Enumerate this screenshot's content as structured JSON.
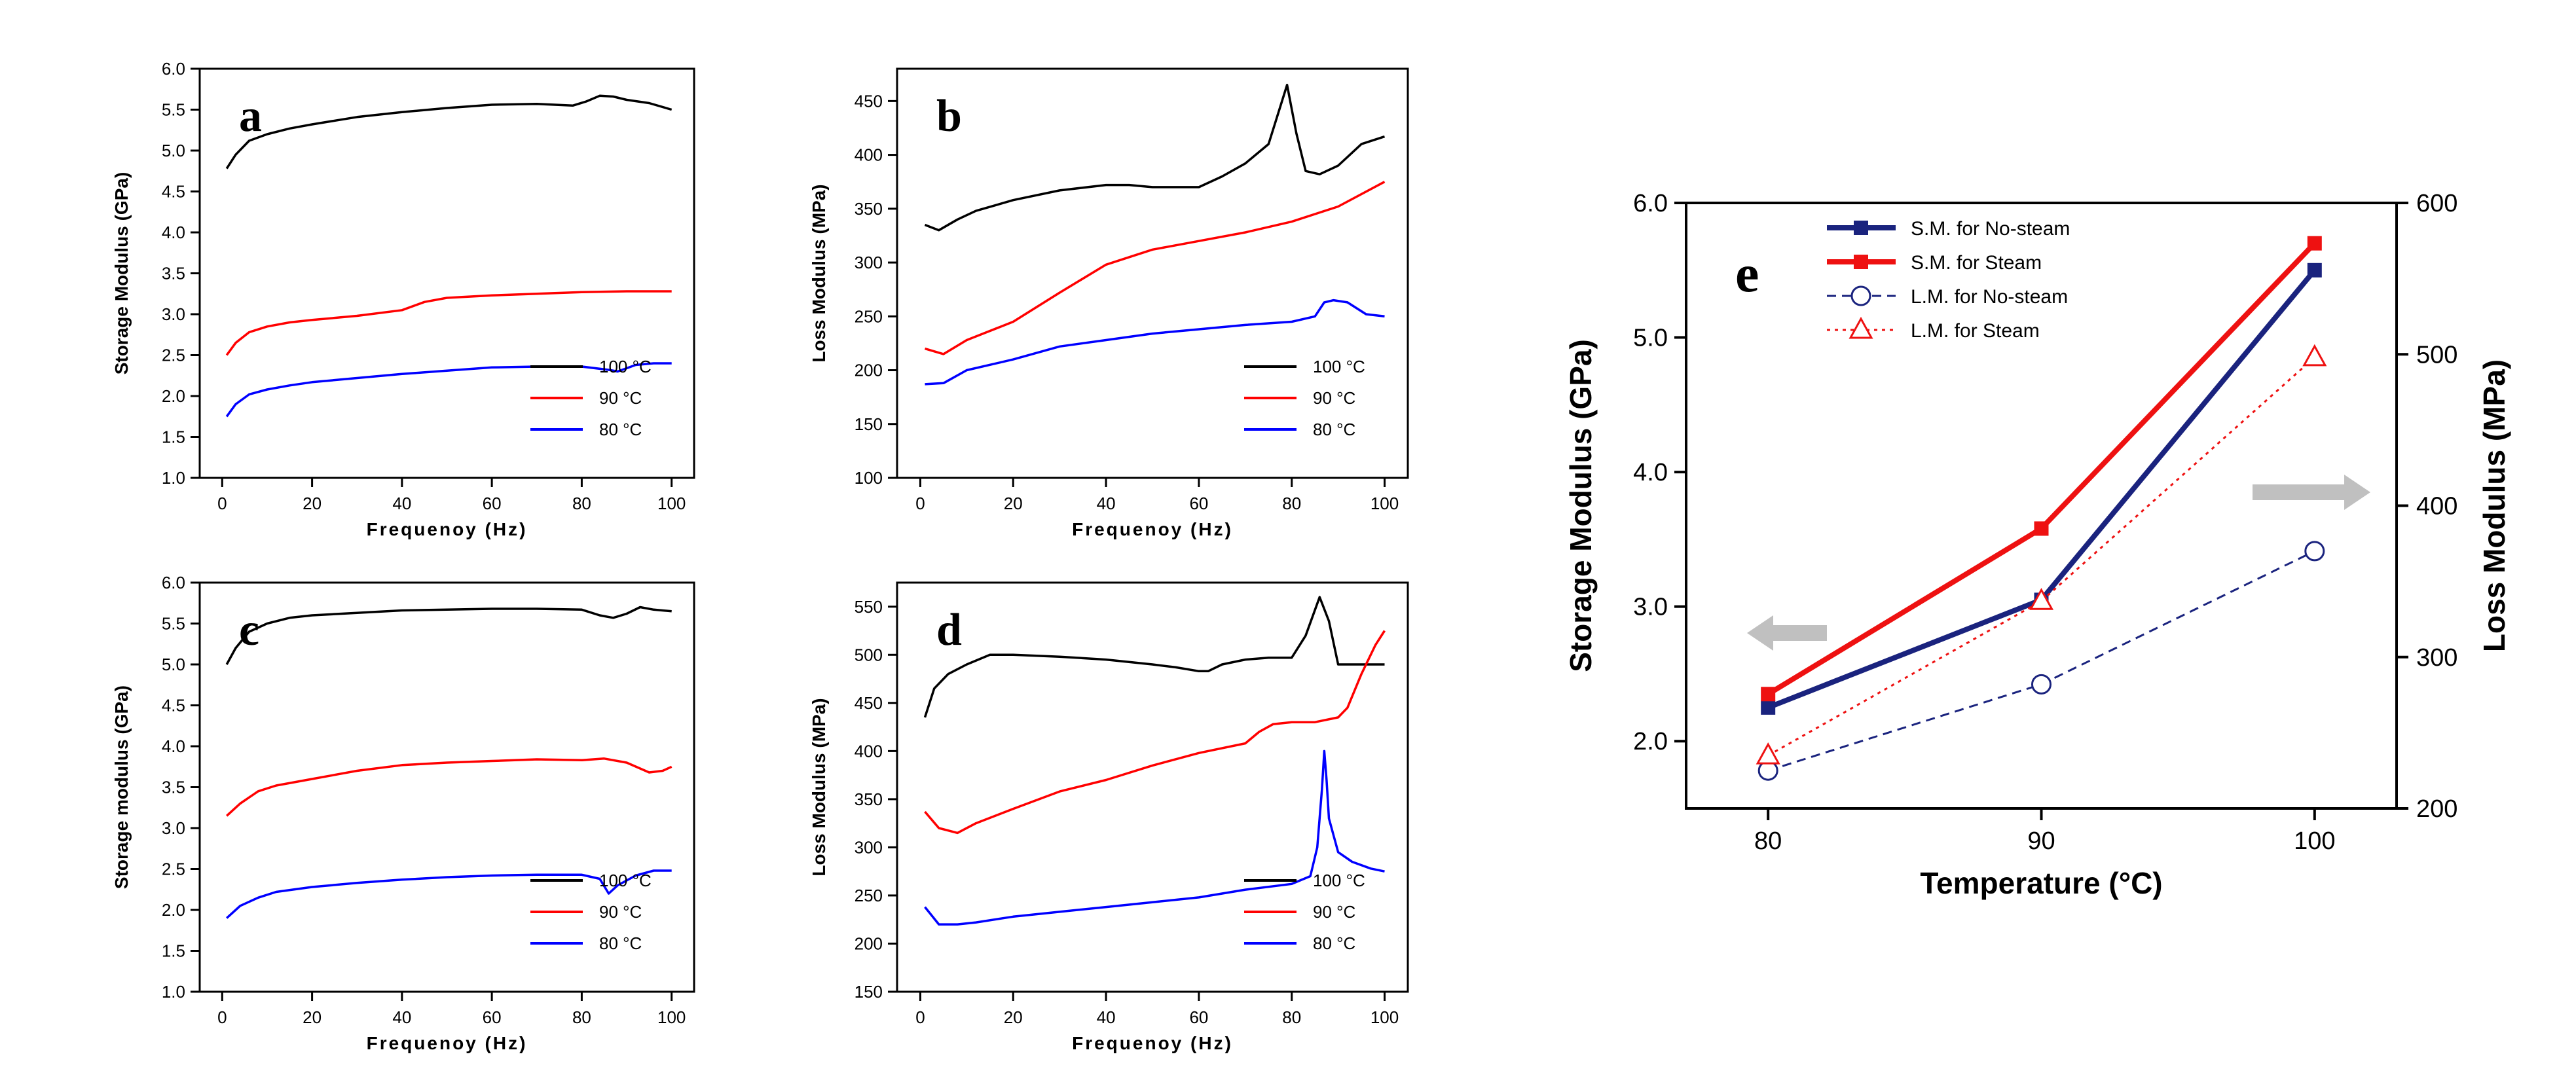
{
  "figure": {
    "description_hidden": ""
  },
  "chart_data": [
    {
      "id": "a",
      "panel_label": "a",
      "type": "line",
      "xlabel": "Frequenoy (Hz)",
      "ylabel": "Storage Modulus (GPa)",
      "xlim": [
        -5,
        105
      ],
      "ylim": [
        1.0,
        6.0
      ],
      "xticks": [
        0,
        20,
        40,
        60,
        80,
        100
      ],
      "yticks": [
        1.0,
        1.5,
        2.0,
        2.5,
        3.0,
        3.5,
        4.0,
        4.5,
        5.0,
        5.5,
        6.0
      ],
      "yformat": 1,
      "legend_position": "bottom-right",
      "series": [
        {
          "name": "100 °C",
          "color": "#000000",
          "x": [
            1,
            3,
            6,
            10,
            15,
            20,
            30,
            40,
            50,
            60,
            70,
            78,
            81,
            84,
            87,
            90,
            95,
            100
          ],
          "y": [
            4.78,
            4.95,
            5.12,
            5.2,
            5.27,
            5.32,
            5.41,
            5.47,
            5.52,
            5.56,
            5.57,
            5.55,
            5.6,
            5.67,
            5.66,
            5.62,
            5.58,
            5.5
          ]
        },
        {
          "name": "90 °C",
          "color": "#ff0000",
          "x": [
            1,
            3,
            6,
            10,
            15,
            20,
            30,
            40,
            45,
            50,
            60,
            70,
            80,
            90,
            100
          ],
          "y": [
            2.5,
            2.65,
            2.78,
            2.85,
            2.9,
            2.93,
            2.98,
            3.05,
            3.15,
            3.2,
            3.23,
            3.25,
            3.27,
            3.28,
            3.28
          ]
        },
        {
          "name": "80 °C",
          "color": "#0000ff",
          "x": [
            1,
            3,
            6,
            10,
            15,
            20,
            30,
            40,
            50,
            60,
            70,
            80,
            86,
            88,
            92,
            96,
            100
          ],
          "y": [
            1.75,
            1.9,
            2.02,
            2.08,
            2.13,
            2.17,
            2.22,
            2.27,
            2.31,
            2.35,
            2.36,
            2.36,
            2.32,
            2.3,
            2.38,
            2.4,
            2.4
          ]
        }
      ]
    },
    {
      "id": "b",
      "panel_label": "b",
      "type": "line",
      "xlabel": "Frequenoy (Hz)",
      "ylabel": "Loss Modulus (MPa)",
      "xlim": [
        -5,
        105
      ],
      "ylim": [
        100,
        480
      ],
      "xticks": [
        0,
        20,
        40,
        60,
        80,
        100
      ],
      "yticks": [
        100,
        150,
        200,
        250,
        300,
        350,
        400,
        450
      ],
      "yformat": 0,
      "legend_position": "bottom-right",
      "series": [
        {
          "name": "100 °C",
          "color": "#000000",
          "x": [
            1,
            4,
            8,
            12,
            20,
            30,
            40,
            45,
            50,
            60,
            65,
            70,
            75,
            79,
            81,
            83,
            86,
            90,
            95,
            100
          ],
          "y": [
            335,
            330,
            340,
            348,
            358,
            367,
            372,
            372,
            370,
            370,
            380,
            392,
            410,
            465,
            420,
            385,
            382,
            390,
            410,
            417
          ]
        },
        {
          "name": "90 °C",
          "color": "#ff0000",
          "x": [
            1,
            5,
            10,
            20,
            30,
            40,
            45,
            50,
            60,
            70,
            80,
            90,
            100
          ],
          "y": [
            220,
            215,
            228,
            245,
            272,
            298,
            305,
            312,
            320,
            328,
            338,
            352,
            375
          ]
        },
        {
          "name": "80 °C",
          "color": "#0000ff",
          "x": [
            1,
            5,
            10,
            20,
            30,
            40,
            50,
            60,
            70,
            80,
            85,
            87,
            89,
            92,
            96,
            100
          ],
          "y": [
            187,
            188,
            200,
            210,
            222,
            228,
            234,
            238,
            242,
            245,
            250,
            263,
            265,
            263,
            252,
            250
          ]
        }
      ]
    },
    {
      "id": "c",
      "panel_label": "c",
      "type": "line",
      "xlabel": "Frequenoy (Hz)",
      "ylabel": "Storage modulus (GPa)",
      "xlim": [
        -5,
        105
      ],
      "ylim": [
        1.0,
        6.0
      ],
      "xticks": [
        0,
        20,
        40,
        60,
        80,
        100
      ],
      "yticks": [
        1.0,
        1.5,
        2.0,
        2.5,
        3.0,
        3.5,
        4.0,
        4.5,
        5.0,
        5.5,
        6.0
      ],
      "yformat": 1,
      "legend_position": "bottom-right",
      "series": [
        {
          "name": "100 °C",
          "color": "#000000",
          "x": [
            1,
            3,
            6,
            10,
            15,
            20,
            30,
            40,
            50,
            60,
            70,
            80,
            84,
            87,
            90,
            93,
            96,
            100
          ],
          "y": [
            5.0,
            5.2,
            5.4,
            5.5,
            5.57,
            5.6,
            5.63,
            5.66,
            5.67,
            5.68,
            5.68,
            5.67,
            5.6,
            5.57,
            5.62,
            5.7,
            5.67,
            5.65
          ]
        },
        {
          "name": "90 °C",
          "color": "#ff0000",
          "x": [
            1,
            4,
            8,
            12,
            20,
            30,
            40,
            50,
            60,
            70,
            80,
            85,
            90,
            95,
            98,
            100
          ],
          "y": [
            3.15,
            3.3,
            3.45,
            3.52,
            3.6,
            3.7,
            3.77,
            3.8,
            3.82,
            3.84,
            3.83,
            3.85,
            3.8,
            3.68,
            3.7,
            3.75
          ]
        },
        {
          "name": "80 °C",
          "color": "#0000ff",
          "x": [
            1,
            4,
            8,
            12,
            20,
            30,
            40,
            50,
            60,
            70,
            80,
            84,
            86,
            88,
            92,
            96,
            100
          ],
          "y": [
            1.9,
            2.05,
            2.15,
            2.22,
            2.28,
            2.33,
            2.37,
            2.4,
            2.42,
            2.43,
            2.43,
            2.38,
            2.2,
            2.3,
            2.42,
            2.48,
            2.48
          ]
        }
      ]
    },
    {
      "id": "d",
      "panel_label": "d",
      "type": "line",
      "xlabel": "Frequenoy (Hz)",
      "ylabel": "Loss Modulus (MPa)",
      "xlim": [
        -5,
        105
      ],
      "ylim": [
        150,
        575
      ],
      "xticks": [
        0,
        20,
        40,
        60,
        80,
        100
      ],
      "yticks": [
        150,
        200,
        250,
        300,
        350,
        400,
        450,
        500,
        550
      ],
      "yformat": 0,
      "legend_position": "bottom-right",
      "series": [
        {
          "name": "100 °C",
          "color": "#000000",
          "x": [
            1,
            3,
            6,
            10,
            15,
            20,
            30,
            40,
            50,
            55,
            60,
            62,
            65,
            70,
            75,
            80,
            83,
            86,
            88,
            90,
            95,
            100
          ],
          "y": [
            435,
            465,
            480,
            490,
            500,
            500,
            498,
            495,
            490,
            487,
            483,
            483,
            490,
            495,
            497,
            497,
            520,
            560,
            535,
            490,
            490,
            490
          ]
        },
        {
          "name": "90 °C",
          "color": "#ff0000",
          "x": [
            1,
            4,
            8,
            12,
            20,
            30,
            40,
            50,
            60,
            70,
            73,
            76,
            80,
            85,
            90,
            92,
            95,
            98,
            100
          ],
          "y": [
            337,
            320,
            315,
            325,
            340,
            358,
            370,
            385,
            398,
            408,
            420,
            428,
            430,
            430,
            435,
            445,
            480,
            510,
            525
          ]
        },
        {
          "name": "80 °C",
          "color": "#0000ff",
          "x": [
            1,
            4,
            8,
            12,
            20,
            30,
            40,
            50,
            60,
            65,
            70,
            80,
            84,
            85.5,
            86.5,
            87,
            87.5,
            88,
            90,
            93,
            97,
            100
          ],
          "y": [
            238,
            220,
            220,
            222,
            228,
            233,
            238,
            243,
            248,
            252,
            256,
            262,
            270,
            300,
            360,
            400,
            370,
            330,
            295,
            285,
            278,
            275
          ]
        }
      ]
    },
    {
      "id": "e",
      "panel_label": "e",
      "type": "line",
      "xlabel": "Temperature (°C)",
      "ylabel": "Storage Modulus (GPa)",
      "y2label": "Loss Modulus (MPa)",
      "categories": [
        80,
        90,
        100
      ],
      "xlim": [
        77,
        103
      ],
      "ylim": [
        1.5,
        6.0
      ],
      "y2lim": [
        200,
        600
      ],
      "xticks": [
        80,
        90,
        100
      ],
      "yticks": [
        2.0,
        3.0,
        4.0,
        5.0,
        6.0
      ],
      "y2ticks": [
        200,
        300,
        400,
        500,
        600
      ],
      "legend_position": "top-left",
      "series": [
        {
          "name": "S.M. for No-steam",
          "axis": "left",
          "values": [
            2.25,
            3.05,
            5.5
          ],
          "color": "#1a237e",
          "line": "solid",
          "marker": "square"
        },
        {
          "name": "S.M. for Steam",
          "axis": "left",
          "values": [
            2.35,
            3.58,
            5.7
          ],
          "color": "#ee1111",
          "line": "solid",
          "marker": "square"
        },
        {
          "name": "L.M. for No-steam",
          "axis": "right",
          "values": [
            225,
            282,
            370
          ],
          "color": "#1a237e",
          "line": "dashed",
          "marker": "circle-open"
        },
        {
          "name": "L.M. for Steam",
          "axis": "right",
          "values": [
            235,
            337,
            498
          ],
          "color": "#ee1111",
          "line": "dotted",
          "marker": "triangle-open"
        }
      ],
      "annotations": [
        {
          "type": "arrow",
          "direction": "left",
          "target_axis": "left",
          "color": "#c0c0c0"
        },
        {
          "type": "arrow",
          "direction": "right",
          "target_axis": "right",
          "color": "#c0c0c0"
        }
      ]
    }
  ]
}
